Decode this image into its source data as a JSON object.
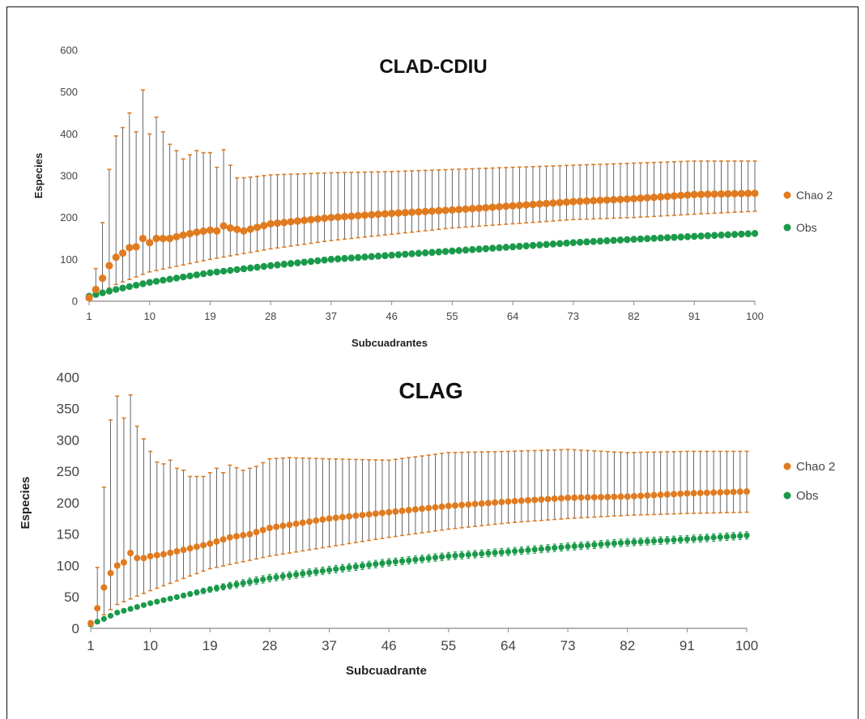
{
  "chart_data": [
    {
      "type": "line",
      "title": "CLAD-CDIU",
      "xlabel": "Subcuadrantes",
      "ylabel": "Especies",
      "xlim": [
        1,
        100
      ],
      "ylim": [
        0,
        600
      ],
      "x_ticks": [
        "1",
        "10",
        "19",
        "28",
        "37",
        "46",
        "55",
        "64",
        "73",
        "82",
        "91",
        "100"
      ],
      "y_ticks": [
        "0",
        "100",
        "200",
        "300",
        "400",
        "500",
        "600"
      ],
      "legend_position": "right",
      "grid": false,
      "series": [
        {
          "name": "Chao 2",
          "color": "#e07b20",
          "anchors_x": [
            1,
            2,
            3,
            4,
            5,
            6,
            7,
            8,
            9,
            10,
            11,
            12,
            13,
            15,
            17,
            19,
            20,
            21,
            22,
            24,
            28,
            37,
            46,
            55,
            64,
            73,
            82,
            91,
            100
          ],
          "anchors_y": [
            8,
            28,
            55,
            85,
            105,
            115,
            128,
            130,
            150,
            140,
            150,
            150,
            150,
            158,
            165,
            170,
            168,
            180,
            175,
            168,
            185,
            200,
            210,
            218,
            228,
            238,
            245,
            255,
            258
          ],
          "upper_x": [
            1,
            2,
            3,
            4,
            5,
            6,
            7,
            8,
            9,
            10,
            11,
            12,
            13,
            14,
            15,
            16,
            17,
            18,
            19,
            20,
            21,
            22,
            23,
            24,
            28,
            37,
            46,
            55,
            64,
            73,
            82,
            91,
            100
          ],
          "upper_y": [
            15,
            78,
            188,
            315,
            395,
            415,
            450,
            405,
            505,
            400,
            440,
            405,
            375,
            360,
            340,
            350,
            360,
            355,
            355,
            320,
            362,
            325,
            295,
            295,
            302,
            307,
            310,
            315,
            320,
            325,
            330,
            335,
            335
          ],
          "lower_x": [
            1,
            5,
            10,
            19,
            28,
            37,
            46,
            55,
            64,
            73,
            82,
            91,
            100
          ],
          "lower_y": [
            5,
            40,
            70,
            100,
            125,
            145,
            160,
            175,
            185,
            195,
            200,
            208,
            215
          ]
        },
        {
          "name": "Obs",
          "color": "#1a9a4a",
          "anchors_x": [
            1,
            3,
            5,
            10,
            19,
            28,
            37,
            46,
            55,
            64,
            73,
            82,
            91,
            100
          ],
          "anchors_y": [
            12,
            20,
            28,
            45,
            68,
            85,
            100,
            110,
            120,
            130,
            140,
            148,
            155,
            162
          ],
          "spread": 14
        }
      ]
    },
    {
      "type": "line",
      "title": "CLAG",
      "xlabel": "Subcuadrante",
      "ylabel": "Especies",
      "xlim": [
        1,
        100
      ],
      "ylim": [
        0,
        400
      ],
      "x_ticks": [
        "1",
        "10",
        "19",
        "28",
        "37",
        "46",
        "55",
        "64",
        "73",
        "82",
        "91",
        "100"
      ],
      "y_ticks": [
        "0",
        "50",
        "100",
        "150",
        "200",
        "250",
        "300",
        "350",
        "400"
      ],
      "legend_position": "right",
      "grid": false,
      "series": [
        {
          "name": "Chao 2",
          "color": "#e07b20",
          "anchors_x": [
            1,
            2,
            3,
            4,
            5,
            6,
            7,
            8,
            9,
            10,
            12,
            15,
            19,
            22,
            25,
            28,
            37,
            46,
            55,
            64,
            73,
            82,
            91,
            100
          ],
          "anchors_y": [
            8,
            32,
            65,
            88,
            100,
            105,
            120,
            112,
            112,
            115,
            118,
            125,
            135,
            145,
            150,
            160,
            175,
            185,
            195,
            202,
            208,
            210,
            215,
            218
          ],
          "upper_x": [
            1,
            2,
            3,
            4,
            5,
            6,
            7,
            8,
            9,
            10,
            11,
            12,
            13,
            14,
            15,
            16,
            17,
            18,
            19,
            20,
            21,
            22,
            24,
            26,
            28,
            31,
            37,
            46,
            55,
            64,
            73,
            82,
            91,
            100
          ],
          "upper_y": [
            12,
            97,
            225,
            332,
            370,
            335,
            372,
            322,
            302,
            282,
            265,
            262,
            268,
            255,
            252,
            242,
            242,
            242,
            248,
            255,
            248,
            260,
            252,
            258,
            270,
            272,
            270,
            268,
            280,
            282,
            285,
            280,
            282,
            282
          ],
          "lower_x": [
            1,
            5,
            10,
            19,
            28,
            37,
            46,
            55,
            64,
            73,
            82,
            91,
            100
          ],
          "lower_y": [
            5,
            38,
            60,
            95,
            115,
            130,
            145,
            158,
            168,
            175,
            180,
            183,
            185
          ]
        },
        {
          "name": "Obs",
          "color": "#1a9a4a",
          "anchors_x": [
            1,
            3,
            5,
            10,
            19,
            28,
            37,
            46,
            55,
            64,
            73,
            82,
            91,
            100
          ],
          "anchors_y": [
            6,
            15,
            25,
            40,
            62,
            80,
            93,
            105,
            115,
            122,
            130,
            137,
            142,
            148
          ],
          "spread": 12
        }
      ]
    }
  ]
}
